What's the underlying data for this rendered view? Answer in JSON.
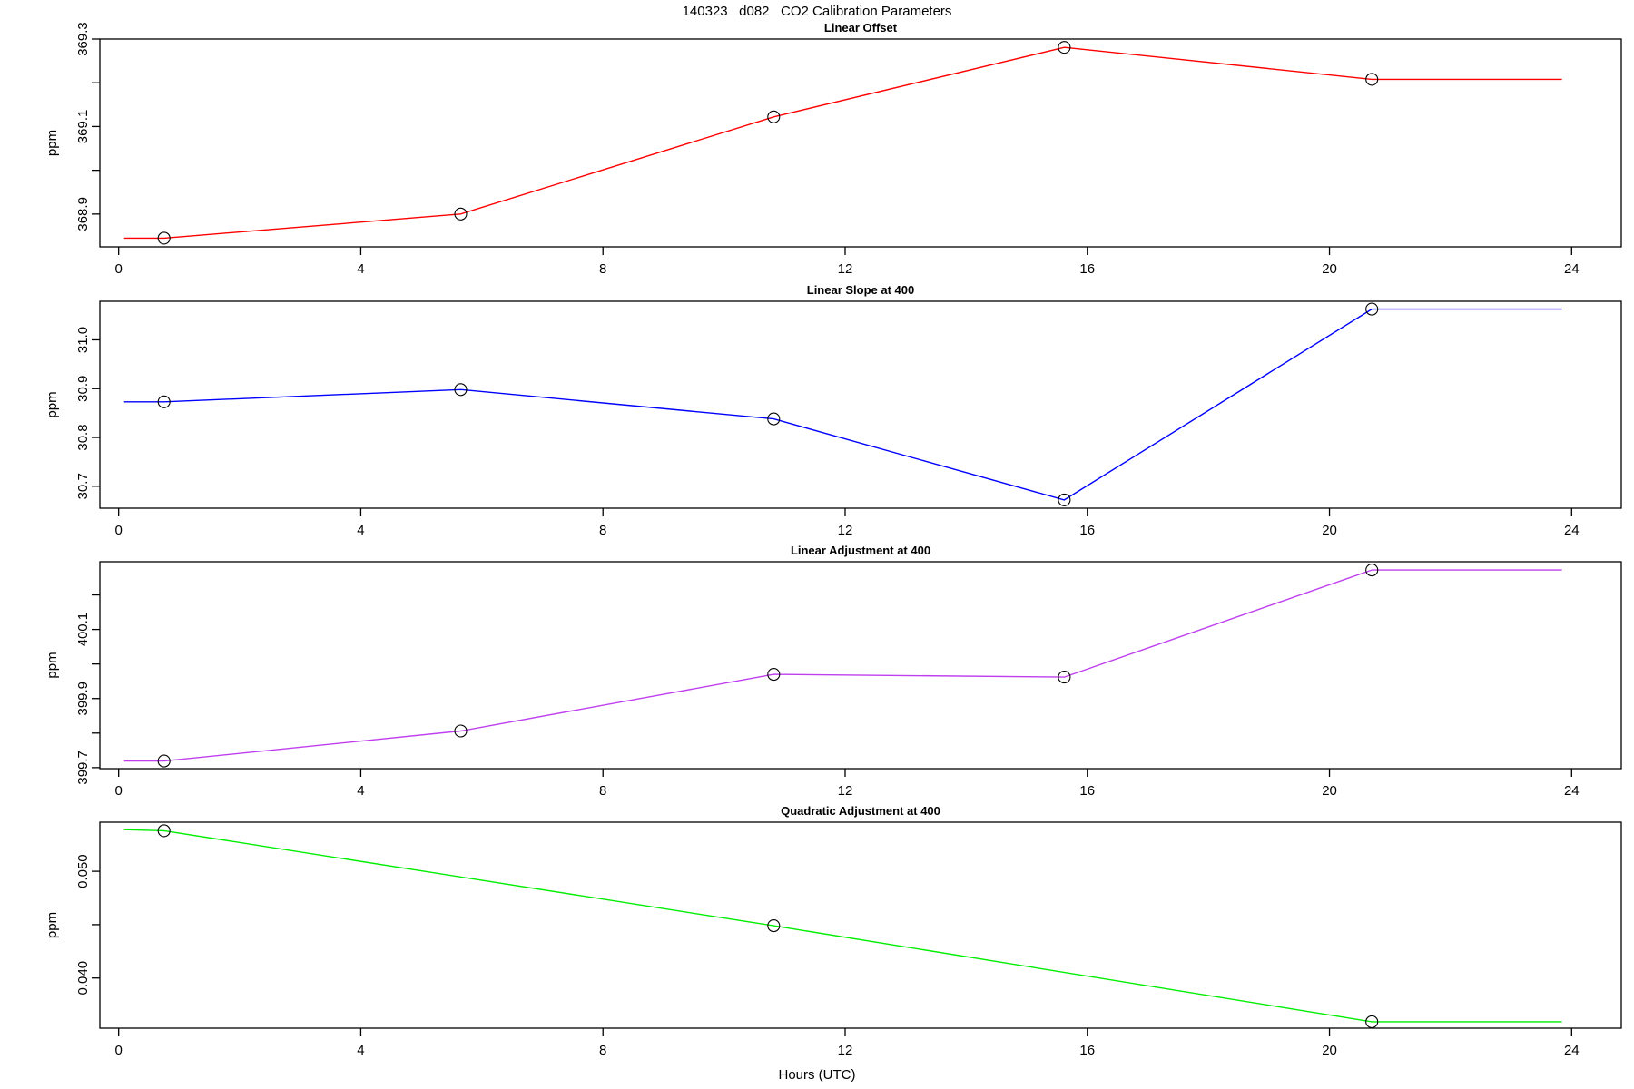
{
  "title": "140323   d082   CO2 Calibration Parameters",
  "xlabel": "Hours (UTC)",
  "chart_data": [
    {
      "type": "line",
      "title": "Linear Offset",
      "ylabel": "ppm",
      "color": "#ff0000",
      "marker": "open-circle",
      "points": {
        "x": [
          0.75,
          5.65,
          10.82,
          15.62,
          20.7
        ],
        "y": [
          368.845,
          368.9,
          369.122,
          369.281,
          369.208
        ]
      },
      "line": {
        "x": [
          0.09,
          0.75,
          5.65,
          10.82,
          15.62,
          20.7,
          23.84
        ],
        "y": [
          368.845,
          368.845,
          368.9,
          369.122,
          369.281,
          369.208,
          369.208
        ]
      },
      "xlim": [
        -0.31,
        24.82
      ],
      "ylim": [
        368.825,
        369.3
      ],
      "xticks": [
        0,
        4,
        8,
        12,
        16,
        20,
        24
      ],
      "yticks": [
        368.9,
        369.0,
        369.1,
        369.2,
        369.3
      ],
      "ytick_labels": [
        "368.9",
        "",
        "369.1",
        "",
        "369.3"
      ],
      "grid": false
    },
    {
      "type": "line",
      "title": "Linear Slope at 400",
      "ylabel": "ppm",
      "color": "#0000ff",
      "marker": "open-circle",
      "points": {
        "x": [
          0.75,
          5.65,
          10.82,
          15.62,
          20.7
        ],
        "y": [
          30.873,
          30.898,
          30.838,
          30.672,
          31.063
        ]
      },
      "line": {
        "x": [
          0.09,
          0.75,
          5.65,
          10.82,
          15.62,
          20.7,
          23.84
        ],
        "y": [
          30.873,
          30.873,
          30.898,
          30.838,
          30.672,
          31.063,
          31.063
        ]
      },
      "xlim": [
        -0.31,
        24.82
      ],
      "ylim": [
        30.655,
        31.079
      ],
      "xticks": [
        0,
        4,
        8,
        12,
        16,
        20,
        24
      ],
      "yticks": [
        30.7,
        30.8,
        30.9,
        31.0
      ],
      "ytick_labels": [
        "30.7",
        "30.8",
        "30.9",
        "31.0"
      ],
      "grid": false
    },
    {
      "type": "line",
      "title": "Linear Adjustment at 400",
      "ylabel": "ppm",
      "color": "#bf3fef",
      "marker": "open-circle",
      "points": {
        "x": [
          0.75,
          5.65,
          10.82,
          15.62,
          20.7
        ],
        "y": [
          399.719,
          399.806,
          399.97,
          399.962,
          400.272
        ]
      },
      "line": {
        "x": [
          0.09,
          0.75,
          5.65,
          10.82,
          15.62,
          20.7,
          23.84
        ],
        "y": [
          399.719,
          399.719,
          399.806,
          399.97,
          399.962,
          400.272,
          400.272
        ]
      },
      "xlim": [
        -0.31,
        24.82
      ],
      "ylim": [
        399.697,
        400.296
      ],
      "xticks": [
        0,
        4,
        8,
        12,
        16,
        20,
        24
      ],
      "yticks": [
        399.7,
        399.8,
        399.9,
        400.0,
        400.1,
        400.2
      ],
      "ytick_labels": [
        "399.7",
        "",
        "399.9",
        "",
        "400.1",
        ""
      ],
      "grid": false
    },
    {
      "type": "line",
      "title": "Quadratic Adjustment at 400",
      "ylabel": "ppm",
      "color": "#00ee00",
      "marker": "open-circle",
      "points": {
        "x": [
          0.75,
          10.82,
          20.7
        ],
        "y": [
          0.0538,
          0.0449,
          0.0359
        ]
      },
      "line": {
        "x": [
          0.09,
          0.75,
          10.82,
          20.7,
          23.84
        ],
        "y": [
          0.0539,
          0.0538,
          0.0449,
          0.0359,
          0.0359
        ]
      },
      "xlim": [
        -0.31,
        24.82
      ],
      "ylim": [
        0.0353,
        0.0546
      ],
      "xticks": [
        0,
        4,
        8,
        12,
        16,
        20,
        24
      ],
      "yticks": [
        0.04,
        0.045,
        0.05
      ],
      "ytick_labels": [
        "0.040",
        "",
        "0.050"
      ],
      "grid": false
    }
  ]
}
